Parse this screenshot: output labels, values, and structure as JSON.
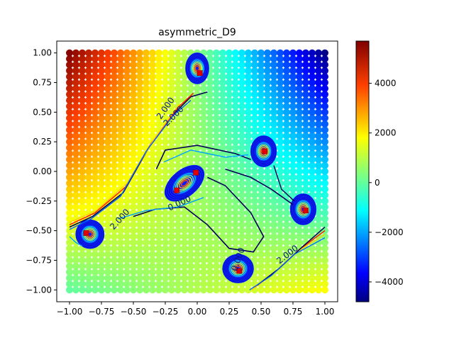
{
  "chart_data": {
    "type": "heatmap",
    "title": "asymmetric_D9",
    "xlabel": "",
    "ylabel": "",
    "xlim": [
      -1.1,
      1.1
    ],
    "ylim": [
      -1.1,
      1.1
    ],
    "x_ticks": [
      -1.0,
      -0.75,
      -0.5,
      -0.25,
      0.0,
      0.25,
      0.5,
      0.75,
      1.0
    ],
    "x_tick_labels": [
      "−1.00",
      "−0.75",
      "−0.50",
      "−0.25",
      "0.00",
      "0.25",
      "0.50",
      "0.75",
      "1.00"
    ],
    "y_ticks": [
      -1.0,
      -0.75,
      -0.5,
      -0.25,
      0.0,
      0.25,
      0.5,
      0.75,
      1.0
    ],
    "y_tick_labels": [
      "−1.00",
      "−0.75",
      "−0.50",
      "−0.25",
      "0.00",
      "0.25",
      "0.50",
      "0.75",
      "1.00"
    ],
    "colormap": "jet",
    "colorbar": {
      "range": [
        -4800,
        5700
      ],
      "ticks": [
        -4000,
        -2000,
        0,
        2000,
        4000
      ],
      "tick_labels": [
        "−4000",
        "−2000",
        "0",
        "2000",
        "4000"
      ]
    },
    "corner_values": {
      "top_left": 5600,
      "top_right": -4700,
      "bottom_left": 0,
      "bottom_right": 1800
    },
    "wells": [
      {
        "x": 0.0,
        "y": 0.87,
        "rx": 0.09,
        "ry": 0.13
      },
      {
        "x": 0.52,
        "y": 0.17,
        "rx": 0.1,
        "ry": 0.13
      },
      {
        "x": -0.1,
        "y": -0.1,
        "rx": 0.18,
        "ry": 0.11,
        "angle": 40
      },
      {
        "x": 0.83,
        "y": -0.32,
        "rx": 0.1,
        "ry": 0.13
      },
      {
        "x": -0.84,
        "y": -0.53,
        "rx": 0.11,
        "ry": 0.12
      },
      {
        "x": 0.32,
        "y": -0.82,
        "rx": 0.12,
        "ry": 0.12
      }
    ],
    "peak_markers": [
      [
        0.02,
        0.83
      ],
      [
        0.53,
        0.17
      ],
      [
        -0.16,
        -0.16
      ],
      [
        -0.01,
        -0.01
      ],
      [
        0.85,
        -0.33
      ],
      [
        -0.87,
        -0.52
      ],
      [
        0.33,
        -0.84
      ]
    ],
    "contour_labels": [
      {
        "text": "2.000",
        "x": -0.23,
        "y": 0.52,
        "angle": -55
      },
      {
        "text": "2.000",
        "x": -0.17,
        "y": 0.45,
        "angle": -45
      },
      {
        "text": "2.000",
        "x": -0.59,
        "y": -0.42,
        "angle": -48
      },
      {
        "text": "0.000",
        "x": -0.13,
        "y": -0.29,
        "angle": -25
      },
      {
        "text": "0.000",
        "x": 0.34,
        "y": -0.75,
        "angle": -70
      },
      {
        "text": "2.000",
        "x": 0.72,
        "y": -0.72,
        "angle": -38
      }
    ]
  }
}
